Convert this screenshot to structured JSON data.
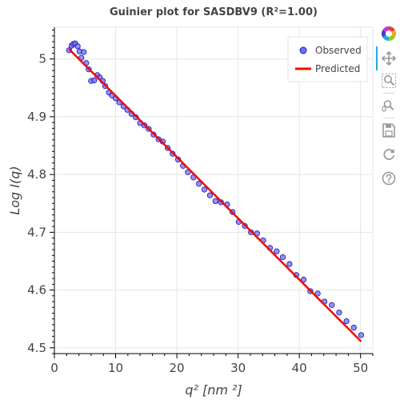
{
  "chart_data": {
    "type": "scatter",
    "title": "Guinier plot for SASDBV9 (R²=1.00)",
    "xlabel": "q² [nm ²]",
    "ylabel": "Log I(q)",
    "xlim": [
      0,
      52
    ],
    "ylim": [
      4.49,
      5.055
    ],
    "xticks": [
      0,
      10,
      20,
      30,
      40,
      50
    ],
    "yticks": [
      4.5,
      4.6,
      4.7,
      4.8,
      4.9,
      5.0
    ],
    "xtick_labels": [
      "0",
      "10",
      "20",
      "30",
      "40",
      "50"
    ],
    "ytick_labels": [
      "4.5",
      "4.6",
      "4.7",
      "4.8",
      "4.9",
      "5"
    ],
    "grid": true,
    "legend_position": "top-right",
    "series": [
      {
        "name": "Observed",
        "kind": "scatter",
        "color": "#6d6dff",
        "edge_color": "#1f1fb4",
        "x": [
          2.4,
          2.8,
          3.1,
          3.4,
          3.8,
          4.1,
          4.4,
          4.8,
          5.2,
          5.6,
          6.0,
          6.5,
          7.0,
          7.4,
          7.9,
          8.3,
          8.9,
          9.4,
          10.0,
          10.6,
          11.3,
          11.9,
          12.6,
          13.3,
          14.0,
          14.7,
          15.4,
          16.2,
          17.0,
          17.7,
          18.5,
          19.3,
          20.2,
          21.0,
          21.8,
          22.7,
          23.6,
          24.5,
          25.4,
          26.3,
          27.2,
          28.2,
          29.1,
          30.1,
          31.1,
          32.1,
          33.1,
          34.1,
          35.2,
          36.3,
          37.3,
          38.4,
          39.5,
          40.7,
          41.8,
          43.0,
          44.1,
          45.3,
          46.5,
          47.7,
          48.9,
          50.1
        ],
        "y": [
          5.015,
          5.023,
          5.026,
          5.027,
          5.022,
          5.013,
          5.002,
          5.012,
          4.993,
          4.982,
          4.962,
          4.963,
          4.972,
          4.968,
          4.962,
          4.953,
          4.942,
          4.937,
          4.932,
          4.925,
          4.918,
          4.912,
          4.905,
          4.899,
          4.889,
          4.885,
          4.879,
          4.869,
          4.861,
          4.857,
          4.846,
          4.836,
          4.826,
          4.815,
          4.804,
          4.795,
          4.784,
          4.774,
          4.764,
          4.754,
          4.752,
          4.748,
          4.735,
          4.718,
          4.711,
          4.7,
          4.698,
          4.686,
          4.673,
          4.667,
          4.657,
          4.645,
          4.626,
          4.618,
          4.598,
          4.594,
          4.58,
          4.574,
          4.561,
          4.546,
          4.535,
          4.522
        ]
      },
      {
        "name": "Predicted",
        "kind": "line",
        "color": "#ff0000",
        "x": [
          2.4,
          50.1
        ],
        "y": [
          5.017,
          4.511
        ]
      }
    ]
  },
  "toolbar": {
    "logo": "bokeh-logo-icon",
    "tools": [
      "pan-icon",
      "box-zoom-icon",
      "wheel-zoom-icon",
      "save-icon",
      "reset-icon",
      "help-icon"
    ]
  }
}
